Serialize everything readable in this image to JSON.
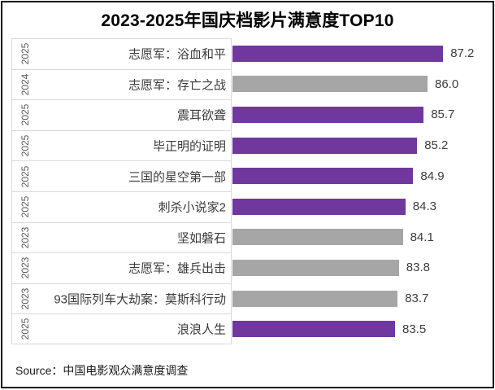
{
  "chart_data": {
    "type": "bar",
    "orientation": "horizontal",
    "title": "2023-2025年国庆档影片满意度TOP10",
    "source": "Source：中国电影观众满意度调查",
    "xlabel": "",
    "ylabel": "",
    "xlim": [
      71,
      89
    ],
    "grid": false,
    "legend": "none",
    "value_labels_shown": true,
    "categories": [
      "志愿军：浴血和平",
      "志愿军：存亡之战",
      "震耳欲聋",
      "毕正明的证明",
      "三国的星空第一部",
      "刺杀小说家2",
      "坚如磐石",
      "志愿军：雄兵出击",
      "93国际列车大劫案：莫斯科行动",
      "浪浪人生"
    ],
    "values": [
      87.2,
      86.0,
      85.7,
      85.2,
      84.9,
      84.3,
      84.1,
      83.8,
      83.7,
      83.5
    ],
    "colors": {
      "purple": "#70389e",
      "gray": "#a6a6a6",
      "cell_border": "#d9d9d9",
      "year_text": "#595959",
      "label_text": "#3a3a3a",
      "value_text": "#3d3d3d"
    },
    "rows": [
      {
        "year": "2025",
        "label": "志愿军：浴血和平",
        "value": "87.2",
        "color": "purple"
      },
      {
        "year": "2024",
        "label": "志愿军：存亡之战",
        "value": "86.0",
        "color": "gray"
      },
      {
        "year": "2025",
        "label": "震耳欲聋",
        "value": "85.7",
        "color": "purple"
      },
      {
        "year": "2025",
        "label": "毕正明的证明",
        "value": "85.2",
        "color": "purple"
      },
      {
        "year": "2025",
        "label": "三国的星空第一部",
        "value": "84.9",
        "color": "purple"
      },
      {
        "year": "2025",
        "label": "刺杀小说家2",
        "value": "84.3",
        "color": "purple"
      },
      {
        "year": "2023",
        "label": "坚如磐石",
        "value": "84.1",
        "color": "gray"
      },
      {
        "year": "2023",
        "label": "志愿军：雄兵出击",
        "value": "83.8",
        "color": "gray"
      },
      {
        "year": "2023",
        "label": "93国际列车大劫案：莫斯科行动",
        "value": "83.7",
        "color": "gray"
      },
      {
        "year": "2025",
        "label": "浪浪人生",
        "value": "83.5",
        "color": "purple"
      }
    ]
  }
}
